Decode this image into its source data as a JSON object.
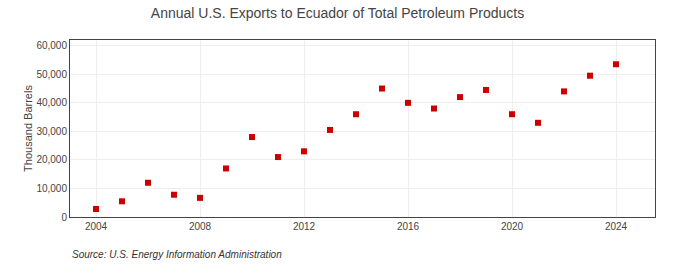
{
  "chart_data": {
    "type": "scatter",
    "title": "Annual U.S. Exports to Ecuador of Total Petroleum Products",
    "ylabel": "Thousand Barrels",
    "annotations": [
      "Source: U.S. Energy Information Administration"
    ],
    "x": [
      2004,
      2005,
      2006,
      2007,
      2008,
      2009,
      2010,
      2011,
      2012,
      2013,
      2014,
      2015,
      2016,
      2017,
      2018,
      2019,
      2020,
      2021,
      2022,
      2023,
      2024
    ],
    "values": [
      2800,
      5500,
      12000,
      7800,
      6700,
      17000,
      28000,
      21000,
      23000,
      30500,
      36000,
      45000,
      40000,
      38000,
      42000,
      44500,
      36000,
      33000,
      44000,
      49500,
      53500
    ],
    "color": "#cc0000",
    "marker": "square",
    "xlim": [
      2003.0,
      2025.5
    ],
    "xticks": [
      2004,
      2008,
      2012,
      2016,
      2020,
      2024
    ],
    "ylim": [
      0,
      62000
    ],
    "yticks": [
      0,
      {
        "value": 10000,
        "label": "10,000"
      },
      {
        "value": 20000,
        "label": "20,000"
      },
      {
        "value": 30000,
        "label": "30,000"
      },
      {
        "value": 40000,
        "label": "40,000"
      },
      {
        "value": 50000,
        "label": "50,000"
      },
      {
        "value": 60000,
        "label": "60,000"
      }
    ],
    "grid": true
  }
}
